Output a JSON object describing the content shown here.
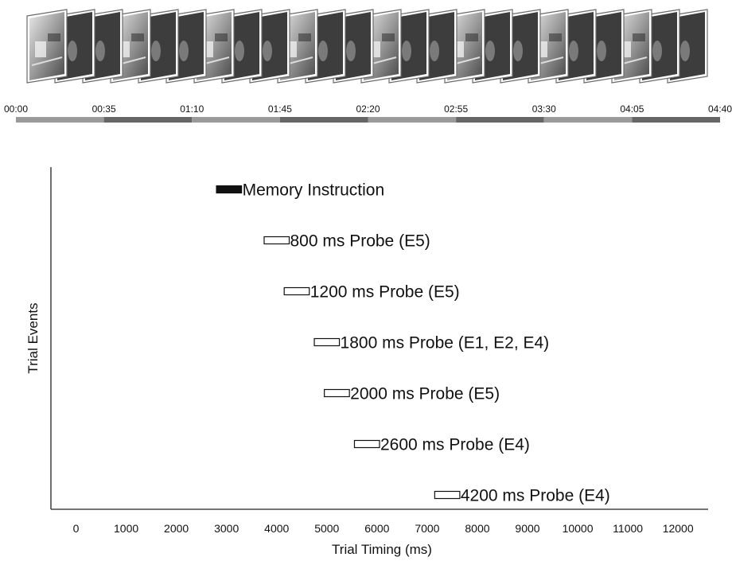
{
  "timeline_strip": {
    "time_labels": [
      "00:00",
      "00:35",
      "01:10",
      "01:45",
      "02:20",
      "02:55",
      "03:30",
      "04:05",
      "04:40"
    ],
    "frame_sequence": [
      "scene",
      "gray",
      "gray",
      "scene",
      "gray",
      "gray",
      "scene",
      "gray",
      "gray",
      "scene",
      "gray",
      "gray",
      "scene",
      "gray",
      "gray",
      "scene",
      "gray",
      "gray",
      "scene",
      "gray",
      "gray",
      "scene",
      "gray",
      "gray"
    ],
    "bar_colors": [
      "#9a9a9a",
      "#666666"
    ]
  },
  "chart_data": {
    "type": "gantt",
    "xlabel": "Trial Timing (ms)",
    "ylabel": "Trial Events",
    "xlim": [
      -500,
      12600
    ],
    "x_ticks": [
      0,
      1000,
      2000,
      3000,
      4000,
      5000,
      6000,
      7000,
      8000,
      9000,
      10000,
      11000,
      12000
    ],
    "events": [
      {
        "label": "Memory Instruction",
        "start": 2800,
        "end": 3300,
        "filled": true
      },
      {
        "label": "800 ms Probe (E5)",
        "start": 3750,
        "end": 4250,
        "filled": false
      },
      {
        "label": "1200 ms Probe (E5)",
        "start": 4150,
        "end": 4650,
        "filled": false
      },
      {
        "label": "1800 ms Probe (E1, E2, E4)",
        "start": 4750,
        "end": 5250,
        "filled": false
      },
      {
        "label": "2000 ms Probe (E5)",
        "start": 4950,
        "end": 5450,
        "filled": false
      },
      {
        "label": "2600 ms Probe (E4)",
        "start": 5550,
        "end": 6050,
        "filled": false
      },
      {
        "label": "4200 ms Probe (E4)",
        "start": 7150,
        "end": 7650,
        "filled": false
      }
    ],
    "grid": false,
    "legend": "none"
  }
}
